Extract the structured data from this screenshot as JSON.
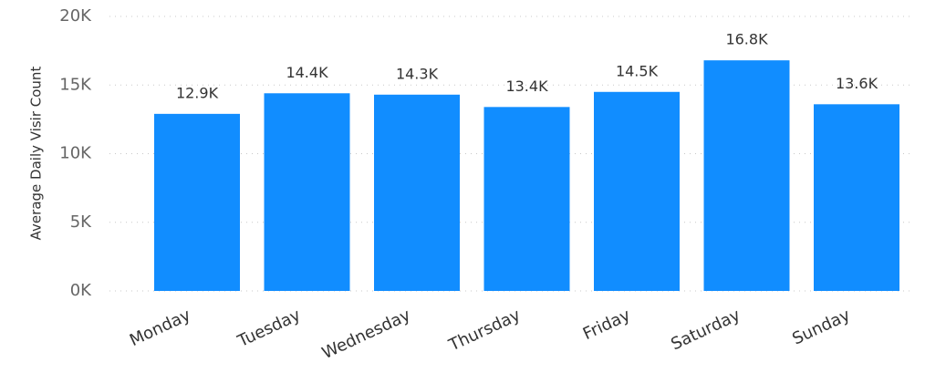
{
  "chart_data": {
    "type": "bar",
    "y_label": "Average Daily Visir Count",
    "categories": [
      "Monday",
      "Tuesday",
      "Wednesday",
      "Thursday",
      "Friday",
      "Saturday",
      "Sunday"
    ],
    "values": [
      12900,
      14400,
      14300,
      13400,
      14500,
      16800,
      13600
    ],
    "value_labels": [
      "12.9K",
      "14.4K",
      "14.3K",
      "13.4K",
      "14.5K",
      "16.8K",
      "13.6K"
    ],
    "color": "#118dff",
    "ylim": [
      0,
      20000
    ],
    "yticks": [
      {
        "value": 0,
        "label": "0K"
      },
      {
        "value": 5000,
        "label": "5K"
      },
      {
        "value": 10000,
        "label": "10K"
      },
      {
        "value": 15000,
        "label": "15K"
      },
      {
        "value": 20000,
        "label": "20K"
      }
    ],
    "grid": true
  }
}
